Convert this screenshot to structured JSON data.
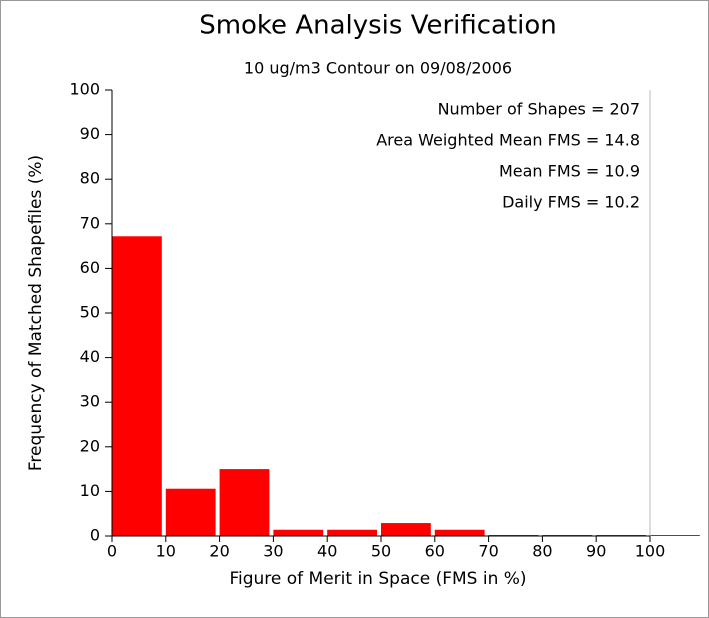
{
  "chart_data": {
    "type": "histogram",
    "title": "Smoke Analysis Verification",
    "subtitle": "10 ug/m3 Contour on 09/08/2006",
    "xlabel": "Figure of Merit in Space (FMS in %)",
    "ylabel": "Frequency of Matched Shapefiles (%)",
    "annotations": [
      "Number of Shapes = 207",
      "Area Weighted Mean FMS = 14.8",
      "Mean FMS = 10.9",
      "Daily FMS = 10.2"
    ],
    "bins": [
      0,
      10,
      20,
      30,
      40,
      50,
      60,
      70,
      80,
      90,
      100,
      110
    ],
    "values": [
      67.2,
      10.6,
      15.0,
      1.4,
      1.4,
      2.9,
      1.4,
      0,
      0,
      0,
      0
    ],
    "color": "#ff0000",
    "xlim": [
      0,
      100
    ],
    "xticks": [
      0,
      10,
      20,
      30,
      40,
      50,
      60,
      70,
      80,
      90,
      100
    ],
    "ylim": [
      0,
      100
    ],
    "yticks": [
      0,
      10,
      20,
      30,
      40,
      50,
      60,
      70,
      80,
      90,
      100
    ]
  }
}
